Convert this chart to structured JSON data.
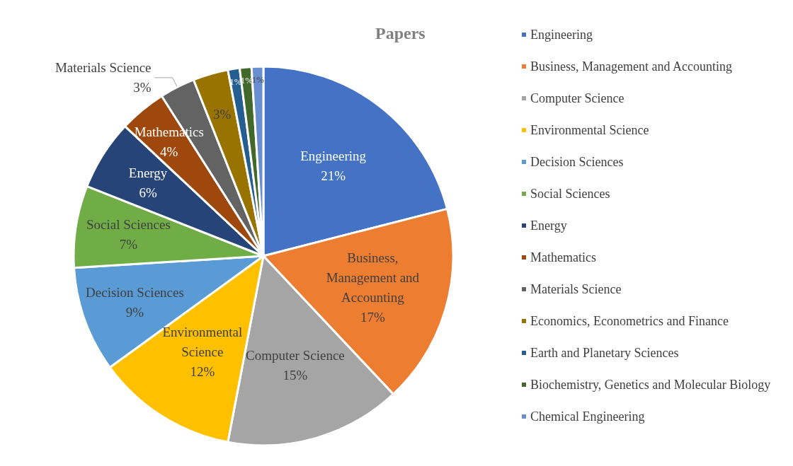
{
  "chart_data": {
    "type": "pie",
    "title": "Papers",
    "categories": [
      "Engineering",
      "Business, Management and Accounting",
      "Computer Science",
      "Environmental Science",
      "Decision Sciences",
      "Social Sciences",
      "Energy",
      "Mathematics",
      "Materials Science",
      "Economics, Econometrics and Finance",
      "Earth and Planetary Sciences",
      "Biochemistry, Genetics and Molecular Biology",
      "Chemical Engineering"
    ],
    "values": [
      21,
      17,
      15,
      12,
      9,
      7,
      6,
      4,
      3,
      3,
      1,
      1,
      1
    ],
    "colors": [
      "#4472c4",
      "#ed7d31",
      "#a5a5a5",
      "#ffc000",
      "#5b9bd5",
      "#70ad47",
      "#264478",
      "#9e480e",
      "#636363",
      "#997300",
      "#255e91",
      "#43682b",
      "#698ed0"
    ],
    "value_labels": [
      "Engineering\n21%",
      "Business,\nManagement and\nAccounting\n17%",
      "Computer Science\n15%",
      "Environmental\nScience\n12%",
      "Decision Sciences\n9%",
      "Social Sciences\n7%",
      "Energy\n6%",
      "Mathematics\n4%",
      "Materials Science\n3%",
      "3%",
      "1%",
      "1%",
      "1%"
    ],
    "legend": "right"
  }
}
